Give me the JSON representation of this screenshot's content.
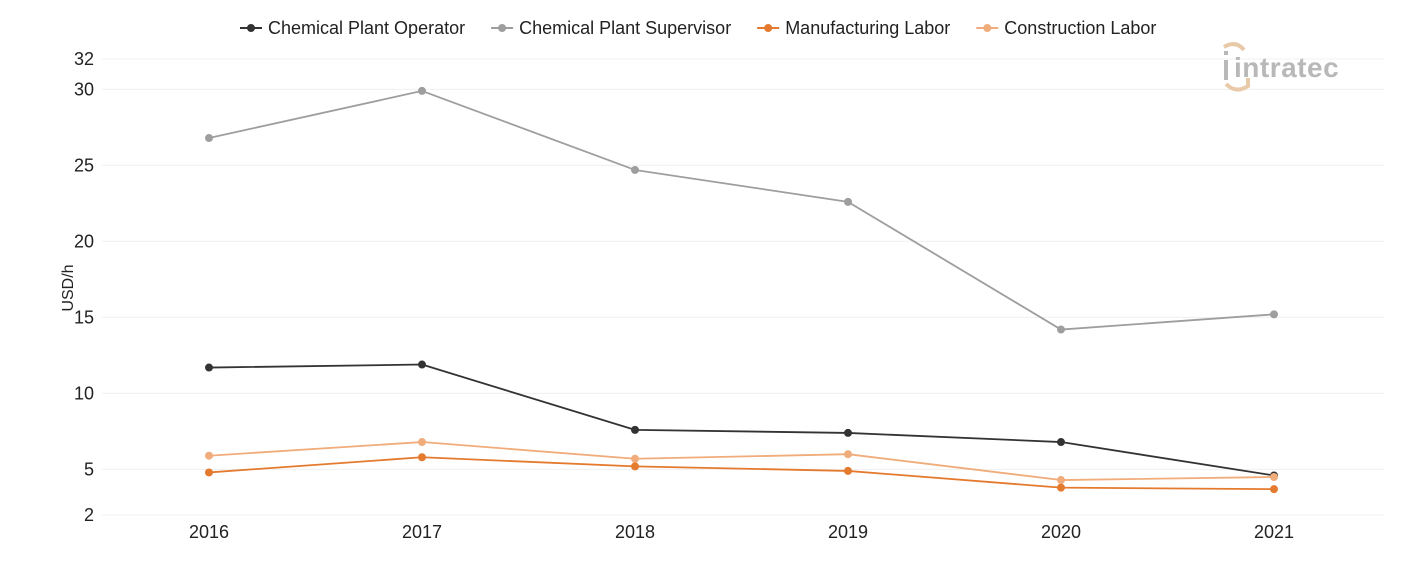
{
  "chart_data": {
    "type": "line",
    "title": "",
    "xlabel": "",
    "ylabel": "USD/h",
    "categories": [
      "2016",
      "2017",
      "2018",
      "2019",
      "2020",
      "2021"
    ],
    "ylim": [
      2,
      32
    ],
    "yticks": [
      2,
      5,
      10,
      15,
      20,
      25,
      30,
      32
    ],
    "grid": "horizontal",
    "legend_position": "top",
    "series": [
      {
        "name": "Chemical Plant Operator",
        "color": "#333333",
        "values": [
          11.7,
          11.9,
          7.6,
          7.4,
          6.8,
          4.6
        ]
      },
      {
        "name": "Chemical Plant Supervisor",
        "color": "#9e9e9e",
        "values": [
          26.8,
          29.9,
          24.7,
          22.6,
          14.2,
          15.2
        ]
      },
      {
        "name": "Manufacturing Labor",
        "color": "#e47a2e",
        "values": [
          4.8,
          5.8,
          5.2,
          4.9,
          3.8,
          3.7
        ]
      },
      {
        "name": "Construction Labor",
        "color": "#f0ac7a",
        "values": [
          5.9,
          6.8,
          5.7,
          6.0,
          4.3,
          4.5
        ]
      }
    ]
  },
  "logo": {
    "text": "intratec",
    "icon": "intratec-logo-icon",
    "color": "#b8b8b8",
    "accent": "#e8c9a8"
  }
}
